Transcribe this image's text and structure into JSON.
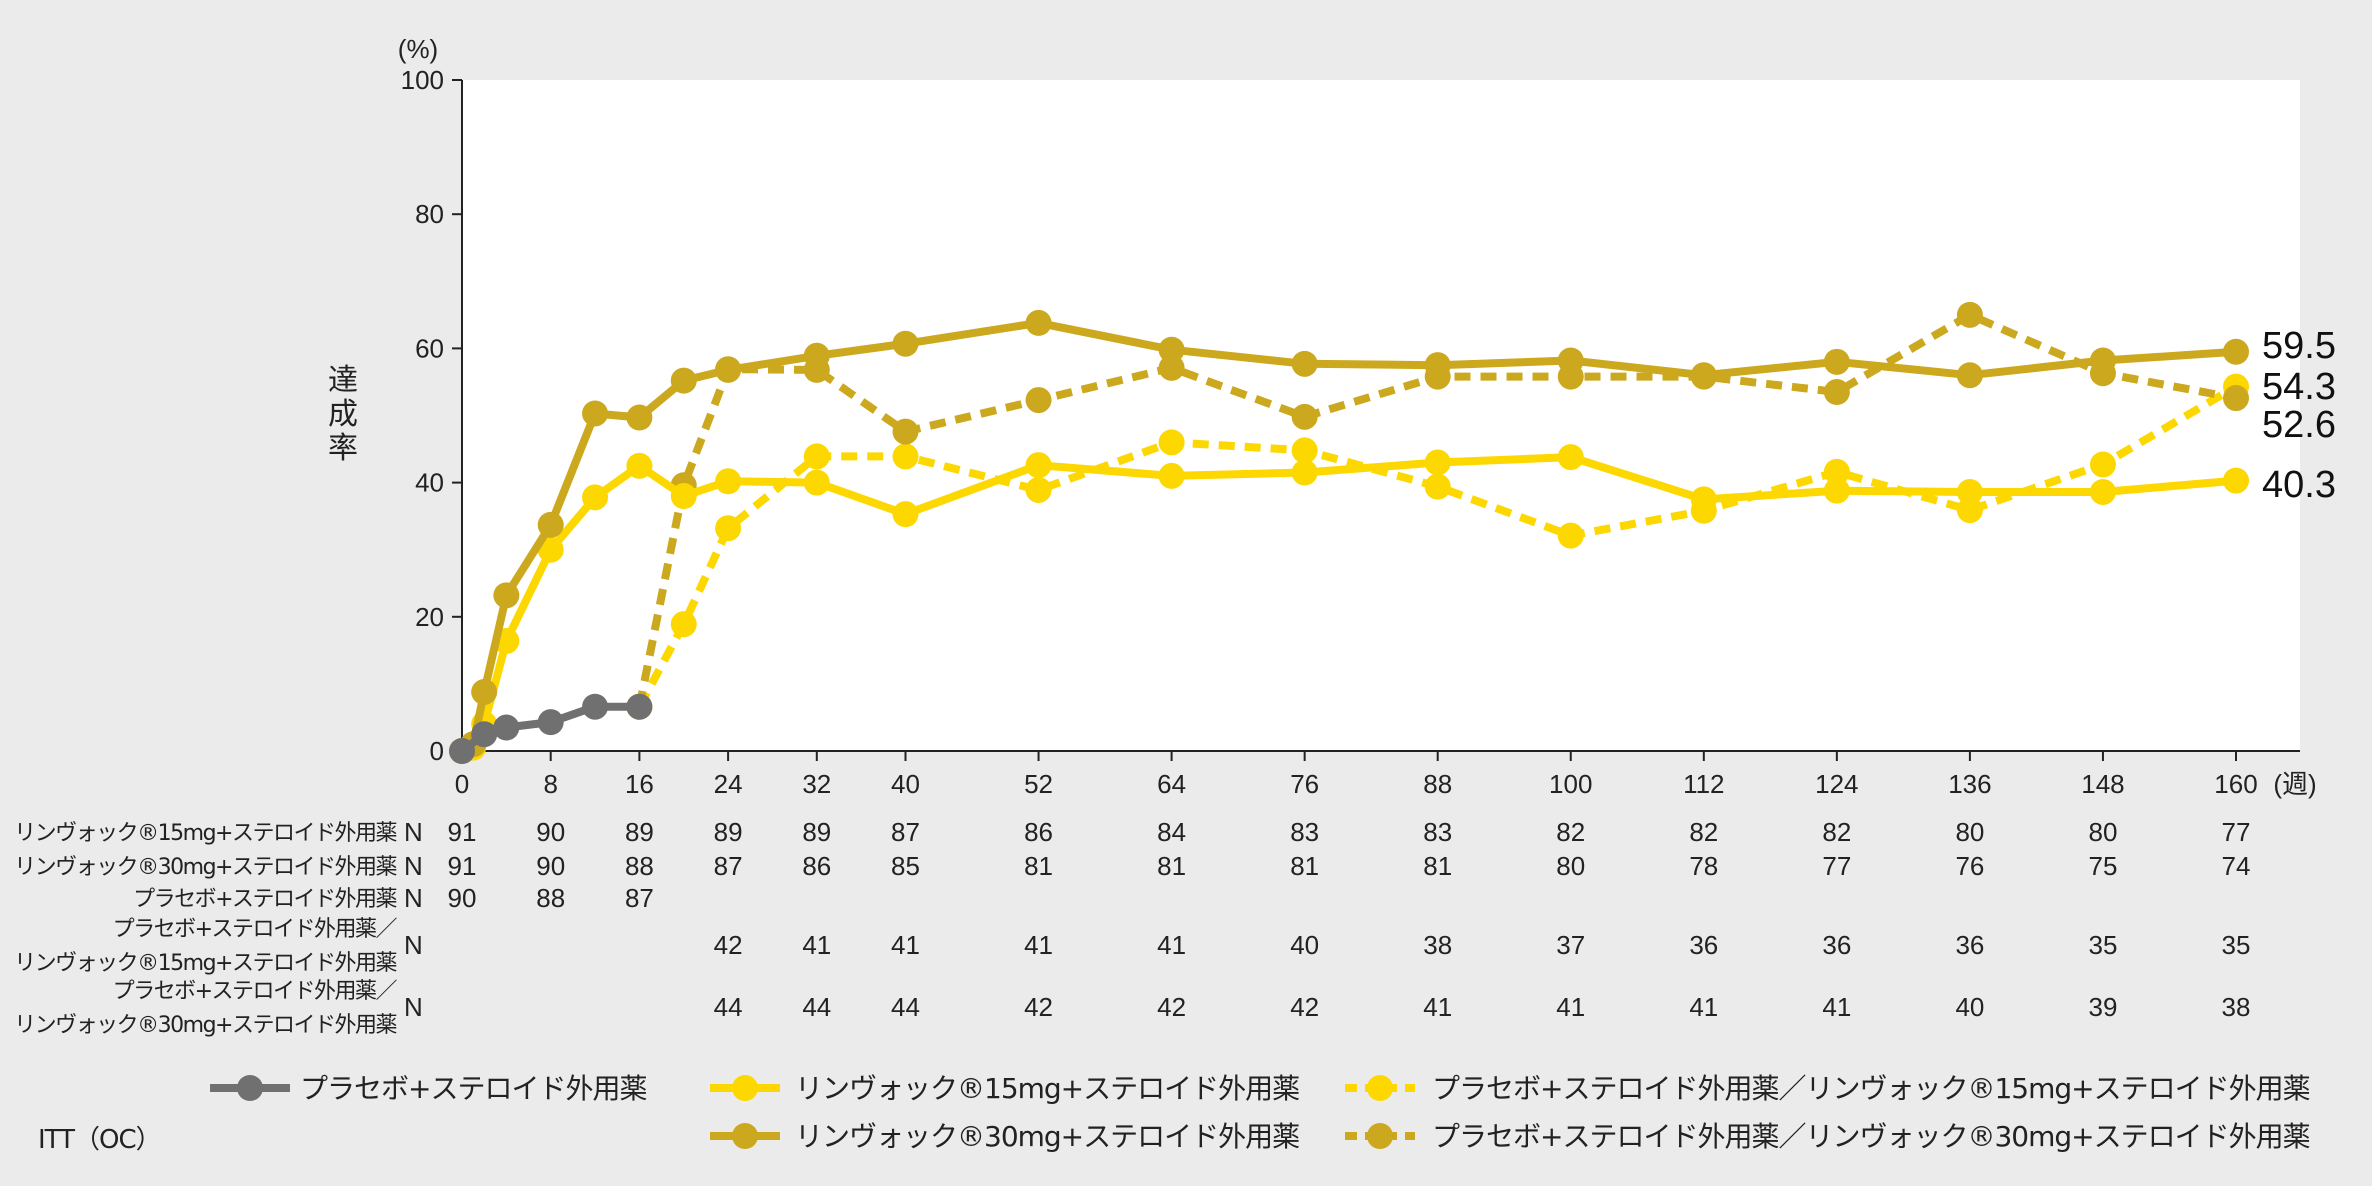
{
  "chart_data": {
    "type": "line",
    "y_unit": "(%)",
    "ylabel": "達成率",
    "x_unit": "(週)",
    "ylim": [
      0,
      100
    ],
    "yticks": [
      0,
      20,
      40,
      60,
      80,
      100
    ],
    "xticks": [
      0,
      8,
      16,
      24,
      32,
      40,
      52,
      64,
      76,
      88,
      100,
      112,
      124,
      136,
      148,
      160
    ],
    "series": [
      {
        "name": "プラセボ+ステロイド外用薬",
        "color": "#707070",
        "dashed": false,
        "x": [
          0,
          2,
          4,
          8,
          12,
          16
        ],
        "y": [
          0,
          2.5,
          3.5,
          4.3,
          6.6,
          6.6
        ]
      },
      {
        "name": "リンヴォック®15mg+ステロイド外用薬",
        "color": "#fcd800",
        "dashed": false,
        "x": [
          0,
          1,
          2,
          4,
          8,
          12,
          16,
          20,
          24,
          32,
          40,
          52,
          64,
          76,
          88,
          100,
          112,
          124,
          136,
          148,
          160
        ],
        "y": [
          0,
          0.5,
          4,
          16.4,
          30,
          37.8,
          42.5,
          38,
          40.2,
          40,
          35.3,
          42.6,
          41,
          41.5,
          43,
          43.8,
          37.5,
          38.8,
          38.6,
          38.6,
          40.3
        ]
      },
      {
        "name": "リンヴォック®30mg+ステロイド外用薬",
        "color": "#cca81e",
        "dashed": false,
        "x": [
          0,
          1,
          2,
          4,
          8,
          12,
          16,
          20,
          24,
          32,
          40,
          52,
          64,
          76,
          88,
          100,
          112,
          124,
          136,
          148,
          160
        ],
        "y": [
          0,
          1,
          8.8,
          23.2,
          33.7,
          50.3,
          49.7,
          55.2,
          56.8,
          58.9,
          60.7,
          63.8,
          59.8,
          57.7,
          57.5,
          58.2,
          56,
          58,
          56,
          58.2,
          59.5
        ]
      },
      {
        "name": "プラセボ+ステロイド外用薬／リンヴォック®15mg+ステロイド外用薬",
        "color": "#fcd800",
        "dashed": true,
        "x": [
          16,
          20,
          24,
          32,
          40,
          52,
          64,
          76,
          88,
          100,
          112,
          124,
          136,
          148,
          160
        ],
        "y": [
          6.6,
          18.9,
          33.2,
          43.9,
          43.9,
          38.9,
          46,
          44.8,
          39.4,
          32.1,
          35.8,
          41.6,
          35.9,
          42.7,
          54.3
        ]
      },
      {
        "name": "プラセボ+ステロイド外用薬／リンヴォック®30mg+ステロイド外用薬",
        "color": "#cca81e",
        "dashed": true,
        "x": [
          16,
          20,
          24,
          32,
          40,
          52,
          64,
          76,
          88,
          100,
          112,
          124,
          136,
          148,
          160
        ],
        "y": [
          6.6,
          39.6,
          56.9,
          56.8,
          47.6,
          52.3,
          57.1,
          49.8,
          55.8,
          55.8,
          55.8,
          53.5,
          65,
          56.3,
          52.6
        ]
      }
    ],
    "end_labels": [
      "59.5",
      "54.3",
      "52.6",
      "40.3"
    ],
    "n_table": {
      "rows": [
        {
          "label": [
            "リンヴォック®15mg+ステロイド外用薬"
          ],
          "n": "N",
          "x": [
            0,
            8,
            16,
            24,
            32,
            40,
            52,
            64,
            76,
            88,
            100,
            112,
            124,
            136,
            148,
            160
          ],
          "values": [
            "91",
            "90",
            "89",
            "89",
            "89",
            "87",
            "86",
            "84",
            "83",
            "83",
            "82",
            "82",
            "82",
            "80",
            "80",
            "77"
          ]
        },
        {
          "label": [
            "リンヴォック®30mg+ステロイド外用薬"
          ],
          "n": "N",
          "x": [
            0,
            8,
            16,
            24,
            32,
            40,
            52,
            64,
            76,
            88,
            100,
            112,
            124,
            136,
            148,
            160
          ],
          "values": [
            "91",
            "90",
            "88",
            "87",
            "86",
            "85",
            "81",
            "81",
            "81",
            "81",
            "80",
            "78",
            "77",
            "76",
            "75",
            "74"
          ]
        },
        {
          "label": [
            "プラセボ+ステロイド外用薬"
          ],
          "n": "N",
          "x": [
            0,
            8,
            16
          ],
          "values": [
            "90",
            "88",
            "87"
          ]
        },
        {
          "label": [
            "プラセボ+ステロイド外用薬／",
            "リンヴォック®15mg+ステロイド外用薬"
          ],
          "n": "N",
          "x": [
            24,
            32,
            40,
            52,
            64,
            76,
            88,
            100,
            112,
            124,
            136,
            148,
            160
          ],
          "values": [
            "42",
            "41",
            "41",
            "41",
            "41",
            "40",
            "38",
            "37",
            "36",
            "36",
            "36",
            "35",
            "35"
          ]
        },
        {
          "label": [
            "プラセボ+ステロイド外用薬／",
            "リンヴォック®30mg+ステロイド外用薬"
          ],
          "n": "N",
          "x": [
            24,
            32,
            40,
            52,
            64,
            76,
            88,
            100,
            112,
            124,
            136,
            148,
            160
          ],
          "values": [
            "44",
            "44",
            "44",
            "42",
            "42",
            "42",
            "41",
            "41",
            "41",
            "41",
            "40",
            "39",
            "38"
          ]
        }
      ]
    },
    "legend": [
      {
        "label": "プラセボ+ステロイド外用薬",
        "color": "#707070",
        "dashed": false
      },
      {
        "label": "リンヴォック®15mg+ステロイド外用薬",
        "color": "#fcd800",
        "dashed": false
      },
      {
        "label": "プラセボ+ステロイド外用薬／リンヴォック®15mg+ステロイド外用薬",
        "color": "#fcd800",
        "dashed": true
      },
      {
        "label": "リンヴォック®30mg+ステロイド外用薬",
        "color": "#cca81e",
        "dashed": false
      },
      {
        "label": "プラセボ+ステロイド外用薬／リンヴォック®30mg+ステロイド外用薬",
        "color": "#cca81e",
        "dashed": true
      }
    ],
    "footnote": "ITT（OC）",
    "grid": false,
    "background": "#ebebeb",
    "plot_background": "#ffffff"
  }
}
